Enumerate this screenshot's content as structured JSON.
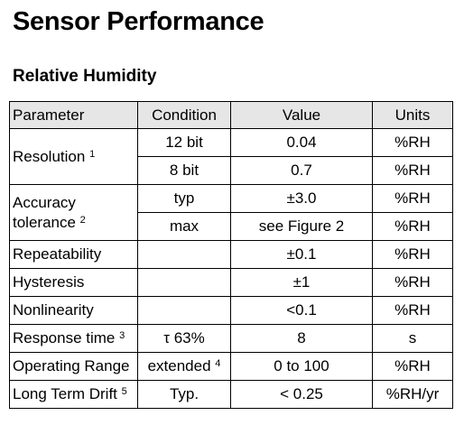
{
  "page": {
    "title": "Sensor Performance",
    "section": "Relative Humidity"
  },
  "table": {
    "headers": {
      "parameter": "Parameter",
      "condition": "Condition",
      "value": "Value",
      "units": "Units"
    },
    "rows": {
      "resolution": {
        "label": "Resolution",
        "note": "1",
        "sub": [
          {
            "condition": "12 bit",
            "value": "0.04",
            "units": "%RH"
          },
          {
            "condition": "8 bit",
            "value": "0.7",
            "units": "%RH"
          }
        ]
      },
      "accuracy": {
        "label_line1": "Accuracy",
        "label_line2": "tolerance",
        "note": "2",
        "sub": [
          {
            "condition": "typ",
            "value": "±3.0",
            "units": "%RH"
          },
          {
            "condition": "max",
            "value": "see Figure 2",
            "units": "%RH"
          }
        ]
      },
      "repeatability": {
        "label": "Repeatability",
        "condition": "",
        "value": "±0.1",
        "units": "%RH"
      },
      "hysteresis": {
        "label": "Hysteresis",
        "condition": "",
        "value": "±1",
        "units": "%RH"
      },
      "nonlinearity": {
        "label": "Nonlinearity",
        "condition": "",
        "value": "<0.1",
        "units": "%RH"
      },
      "response_time": {
        "label": "Response time",
        "note": "3",
        "condition": "τ 63%",
        "value": "8",
        "units": "s"
      },
      "operating_range": {
        "label": "Operating Range",
        "condition": "extended",
        "condition_note": "4",
        "value": "0 to 100",
        "units": "%RH"
      },
      "long_term_drift": {
        "label": "Long Term Drift",
        "note": "5",
        "condition": "Typ.",
        "value": "< 0.25",
        "units": "%RH/yr"
      }
    }
  }
}
